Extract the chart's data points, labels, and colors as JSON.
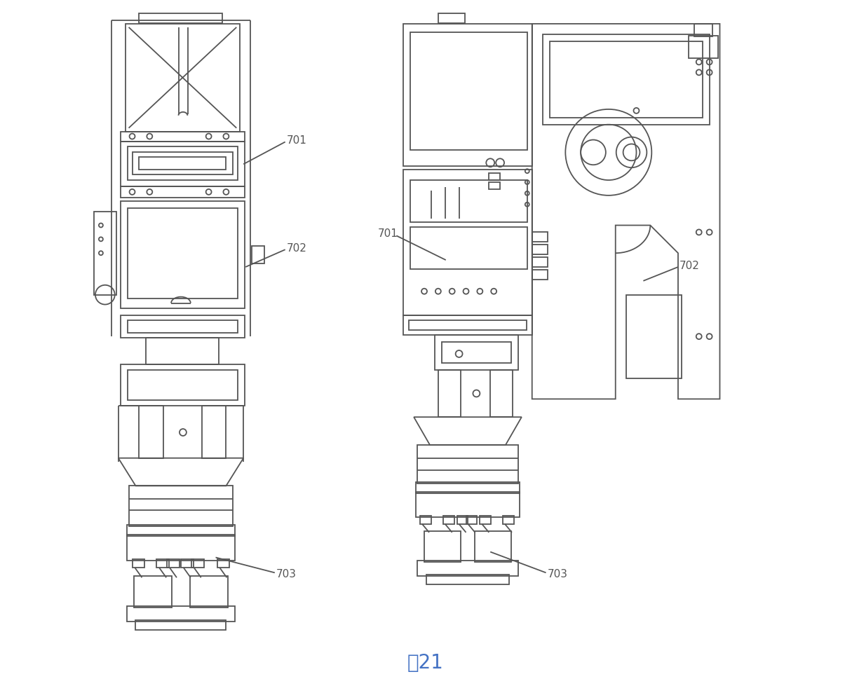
{
  "title": "图21",
  "title_color": "#4472C4",
  "background": "#ffffff",
  "line_color": "#555555",
  "line_width": 1.3,
  "label_fontsize": 11
}
